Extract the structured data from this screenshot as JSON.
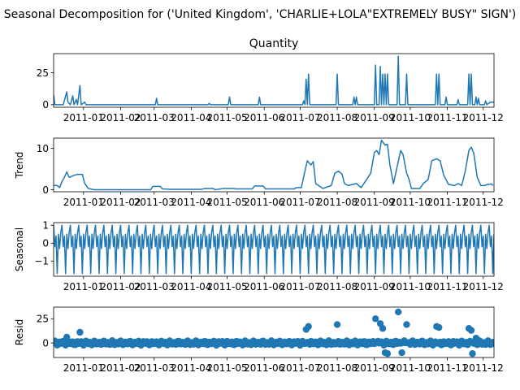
{
  "chart_data": {
    "type": "line",
    "suptitle": "Seasonal Decomposition for ('United Kingdom', 'CHARLIE+LOLA\"EXTREMELY BUSY\" SIGN')",
    "color": "#1f77b4",
    "x_range": [
      "2010-12-07",
      "2011-12-10"
    ],
    "x_ticks": [
      "2011-01",
      "2011-02",
      "2011-03",
      "2011-04",
      "2011-05",
      "2011-06",
      "2011-07",
      "2011-08",
      "2011-09",
      "2011-10",
      "2011-11",
      "2011-12"
    ],
    "panels": [
      {
        "name": "observed",
        "title": "Quantity",
        "ylabel": "",
        "style": "line",
        "ylim": [
          -2,
          40
        ],
        "yticks": [
          "0",
          "25"
        ],
        "ytick_values": [
          0,
          25
        ],
        "points": [
          [
            "2010-12-07",
            8
          ],
          [
            "2010-12-08",
            0
          ],
          [
            "2010-12-15",
            0
          ],
          [
            "2010-12-18",
            10
          ],
          [
            "2010-12-19",
            2
          ],
          [
            "2010-12-21",
            0
          ],
          [
            "2010-12-23",
            7
          ],
          [
            "2010-12-24",
            0
          ],
          [
            "2010-12-26",
            4
          ],
          [
            "2010-12-27",
            0
          ],
          [
            "2010-12-29",
            15
          ],
          [
            "2010-12-30",
            0
          ],
          [
            "2011-01-02",
            2
          ],
          [
            "2011-01-03",
            0
          ],
          [
            "2011-03-02",
            0
          ],
          [
            "2011-03-03",
            5
          ],
          [
            "2011-03-04",
            0
          ],
          [
            "2011-04-15",
            0
          ],
          [
            "2011-04-16",
            1
          ],
          [
            "2011-04-17",
            0
          ],
          [
            "2011-05-02",
            0
          ],
          [
            "2011-05-03",
            6
          ],
          [
            "2011-05-04",
            0
          ],
          [
            "2011-05-27",
            0
          ],
          [
            "2011-05-28",
            6
          ],
          [
            "2011-05-29",
            0
          ],
          [
            "2011-07-03",
            0
          ],
          [
            "2011-07-04",
            3
          ],
          [
            "2011-07-05",
            0
          ],
          [
            "2011-07-06",
            20
          ],
          [
            "2011-07-07",
            0
          ],
          [
            "2011-07-08",
            24
          ],
          [
            "2011-07-09",
            0
          ],
          [
            "2011-07-31",
            0
          ],
          [
            "2011-08-01",
            24
          ],
          [
            "2011-08-02",
            0
          ],
          [
            "2011-08-14",
            0
          ],
          [
            "2011-08-15",
            6
          ],
          [
            "2011-08-16",
            0
          ],
          [
            "2011-08-17",
            6
          ],
          [
            "2011-08-18",
            0
          ],
          [
            "2011-09-01",
            0
          ],
          [
            "2011-09-02",
            31
          ],
          [
            "2011-09-03",
            0
          ],
          [
            "2011-09-05",
            0
          ],
          [
            "2011-09-06",
            30
          ],
          [
            "2011-09-07",
            0
          ],
          [
            "2011-09-08",
            24
          ],
          [
            "2011-09-09",
            0
          ],
          [
            "2011-09-10",
            24
          ],
          [
            "2011-09-11",
            0
          ],
          [
            "2011-09-12",
            24
          ],
          [
            "2011-09-13",
            0
          ],
          [
            "2011-09-20",
            0
          ],
          [
            "2011-09-21",
            38
          ],
          [
            "2011-09-22",
            0
          ],
          [
            "2011-09-27",
            0
          ],
          [
            "2011-09-28",
            24
          ],
          [
            "2011-09-29",
            0
          ],
          [
            "2011-10-22",
            0
          ],
          [
            "2011-10-23",
            24
          ],
          [
            "2011-10-24",
            0
          ],
          [
            "2011-10-25",
            24
          ],
          [
            "2011-10-26",
            0
          ],
          [
            "2011-10-30",
            0
          ],
          [
            "2011-10-31",
            6
          ],
          [
            "2011-11-01",
            0
          ],
          [
            "2011-11-09",
            0
          ],
          [
            "2011-11-10",
            4
          ],
          [
            "2011-11-11",
            0
          ],
          [
            "2011-11-18",
            0
          ],
          [
            "2011-11-19",
            24
          ],
          [
            "2011-11-20",
            0
          ],
          [
            "2011-11-21",
            24
          ],
          [
            "2011-11-22",
            0
          ],
          [
            "2011-11-24",
            0
          ],
          [
            "2011-11-25",
            6
          ],
          [
            "2011-11-26",
            0
          ],
          [
            "2011-11-27",
            5
          ],
          [
            "2011-11-28",
            0
          ],
          [
            "2011-12-02",
            0
          ],
          [
            "2011-12-03",
            3
          ],
          [
            "2011-12-04",
            0
          ],
          [
            "2011-12-07",
            2
          ],
          [
            "2011-12-10",
            2
          ]
        ]
      },
      {
        "name": "trend",
        "title": "",
        "ylabel": "Trend",
        "style": "line",
        "ylim": [
          -0.5,
          12.5
        ],
        "yticks": [
          "0",
          "10"
        ],
        "ytick_values": [
          0,
          10
        ],
        "points": [
          [
            "2010-12-07",
            1.0
          ],
          [
            "2010-12-10",
            1.0
          ],
          [
            "2010-12-12",
            0.5
          ],
          [
            "2010-12-14",
            2.0
          ],
          [
            "2010-12-16",
            3.0
          ],
          [
            "2010-12-18",
            4.3
          ],
          [
            "2010-12-20",
            3.0
          ],
          [
            "2010-12-22",
            3.2
          ],
          [
            "2010-12-24",
            3.5
          ],
          [
            "2010-12-27",
            3.7
          ],
          [
            "2010-12-31",
            3.7
          ],
          [
            "2011-01-02",
            1.5
          ],
          [
            "2011-01-05",
            0.3
          ],
          [
            "2011-01-10",
            0.0
          ],
          [
            "2011-02-26",
            0.0
          ],
          [
            "2011-02-28",
            0.8
          ],
          [
            "2011-03-06",
            0.8
          ],
          [
            "2011-03-08",
            0.2
          ],
          [
            "2011-03-15",
            0.1
          ],
          [
            "2011-04-10",
            0.1
          ],
          [
            "2011-04-12",
            0.3
          ],
          [
            "2011-04-19",
            0.3
          ],
          [
            "2011-04-21",
            0.0
          ],
          [
            "2011-04-28",
            0.3
          ],
          [
            "2011-05-06",
            0.3
          ],
          [
            "2011-05-08",
            0.2
          ],
          [
            "2011-05-22",
            0.2
          ],
          [
            "2011-05-24",
            0.9
          ],
          [
            "2011-05-31",
            0.9
          ],
          [
            "2011-06-02",
            0.2
          ],
          [
            "2011-06-26",
            0.2
          ],
          [
            "2011-06-28",
            0.5
          ],
          [
            "2011-07-02",
            0.5
          ],
          [
            "2011-07-05",
            4.5
          ],
          [
            "2011-07-07",
            7.0
          ],
          [
            "2011-07-10",
            6.0
          ],
          [
            "2011-07-12",
            6.8
          ],
          [
            "2011-07-14",
            1.5
          ],
          [
            "2011-07-20",
            0.3
          ],
          [
            "2011-07-27",
            1.0
          ],
          [
            "2011-07-30",
            4.0
          ],
          [
            "2011-08-02",
            4.5
          ],
          [
            "2011-08-05",
            3.8
          ],
          [
            "2011-08-07",
            1.5
          ],
          [
            "2011-08-10",
            1.0
          ],
          [
            "2011-08-17",
            1.5
          ],
          [
            "2011-08-21",
            0.5
          ],
          [
            "2011-08-29",
            4.0
          ],
          [
            "2011-09-01",
            9.0
          ],
          [
            "2011-09-03",
            9.5
          ],
          [
            "2011-09-05",
            8.5
          ],
          [
            "2011-09-07",
            12.0
          ],
          [
            "2011-09-10",
            10.8
          ],
          [
            "2011-09-12",
            11.0
          ],
          [
            "2011-09-14",
            6.0
          ],
          [
            "2011-09-17",
            1.5
          ],
          [
            "2011-09-20",
            5.5
          ],
          [
            "2011-09-23",
            9.5
          ],
          [
            "2011-09-25",
            8.5
          ],
          [
            "2011-09-28",
            4.0
          ],
          [
            "2011-09-30",
            2.5
          ],
          [
            "2011-10-02",
            0.3
          ],
          [
            "2011-10-09",
            0.3
          ],
          [
            "2011-10-12",
            1.5
          ],
          [
            "2011-10-16",
            2.5
          ],
          [
            "2011-10-19",
            7.0
          ],
          [
            "2011-10-23",
            7.5
          ],
          [
            "2011-10-26",
            7.0
          ],
          [
            "2011-10-29",
            3.5
          ],
          [
            "2011-11-02",
            1.3
          ],
          [
            "2011-11-07",
            1.0
          ],
          [
            "2011-11-10",
            1.5
          ],
          [
            "2011-11-13",
            1.0
          ],
          [
            "2011-11-16",
            4.5
          ],
          [
            "2011-11-19",
            9.5
          ],
          [
            "2011-11-21",
            10.3
          ],
          [
            "2011-11-23",
            9.0
          ],
          [
            "2011-11-26",
            3.0
          ],
          [
            "2011-11-29",
            1.0
          ],
          [
            "2011-12-02",
            1.0
          ],
          [
            "2011-12-05",
            1.3
          ],
          [
            "2011-12-08",
            1.4
          ],
          [
            "2011-12-09",
            1.0
          ]
        ]
      },
      {
        "name": "seasonal",
        "title": "",
        "ylabel": "Seasonal",
        "style": "line",
        "period_days": 7,
        "weekly_pattern": [
          1.0,
          -0.2,
          0.4,
          -1.7,
          0.5,
          -0.3,
          0.6
        ],
        "ylim": [
          -1.85,
          1.15
        ],
        "yticks": [
          "−1",
          "0",
          "1"
        ],
        "ytick_values": [
          -1,
          0,
          1
        ]
      },
      {
        "name": "resid",
        "title": "",
        "ylabel": "Resid",
        "style": "scatter",
        "baseline": 0,
        "ylim": [
          -15,
          37
        ],
        "yticks": [
          "0",
          "25"
        ],
        "ytick_values": [
          0,
          25
        ],
        "outliers": [
          [
            "2010-12-18",
            6
          ],
          [
            "2010-12-29",
            11
          ],
          [
            "2011-07-06",
            14
          ],
          [
            "2011-07-08",
            17
          ],
          [
            "2011-08-01",
            19
          ],
          [
            "2011-09-02",
            25
          ],
          [
            "2011-09-06",
            20
          ],
          [
            "2011-09-08",
            15
          ],
          [
            "2011-09-10",
            -10
          ],
          [
            "2011-09-12",
            -11
          ],
          [
            "2011-09-21",
            32
          ],
          [
            "2011-09-28",
            19
          ],
          [
            "2011-09-24",
            -10
          ],
          [
            "2011-10-23",
            17
          ],
          [
            "2011-10-25",
            16
          ],
          [
            "2011-11-19",
            15
          ],
          [
            "2011-11-21",
            13
          ],
          [
            "2011-11-22",
            -11
          ],
          [
            "2011-11-25",
            5
          ]
        ]
      }
    ]
  }
}
